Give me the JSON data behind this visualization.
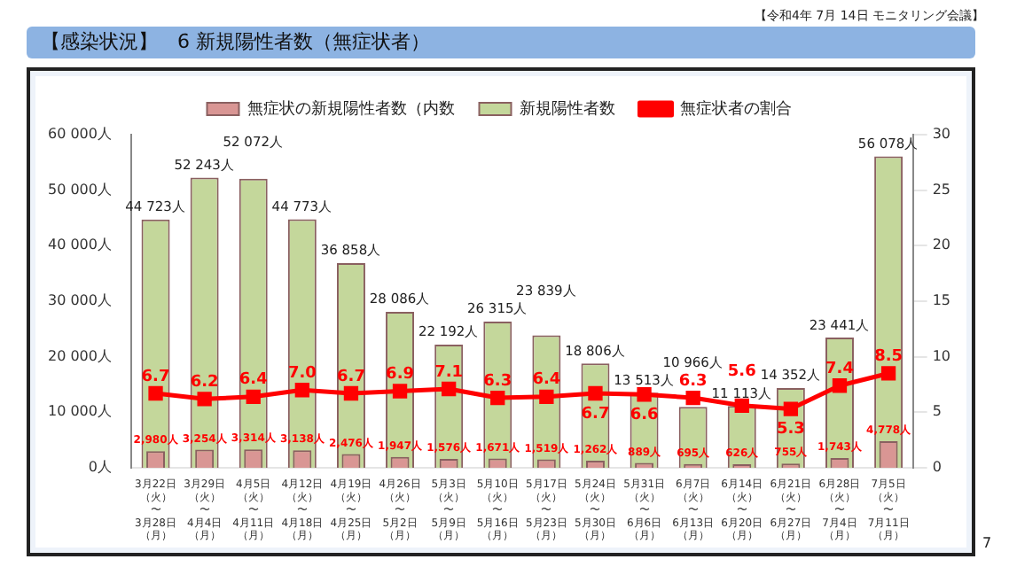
{
  "chart_data": {
    "type": "bar",
    "title": "【感染状況】　6 新規陽性者数（無症状者）",
    "annotations": [
      "【令和4年 7月 14日 モニタリング会議】",
      "7"
    ],
    "categories": [
      "3月22日（火）〜3月28日（月）",
      "3月29日（火）〜4月4日（月）",
      "4月5日（火）〜4月11日（月）",
      "4月12日（火）〜4月18日（月）",
      "4月19日（火）〜4月25日（月）",
      "4月26日（火）〜5月2日（月）",
      "5月3日（火）〜5月9日（月）",
      "5月10日（火）〜5月16日（月）",
      "5月17日（火）〜5月23日（月）",
      "5月24日（火）〜5月30日（月）",
      "5月31日（火）〜6月6日（月）",
      "6月7日（火）〜6月13日（月）",
      "6月14日（火）〜6月20日（月）",
      "6月21日（火）〜6月27日（月）",
      "6月28日（火）〜7月4日（月）",
      "7月5日（火）〜7月11日（月）"
    ],
    "series": [
      {
        "name": "無症状の新規陽性者数（内数",
        "color": "#d99694",
        "values": [
          2980,
          3254,
          3314,
          3138,
          2476,
          1947,
          1576,
          1671,
          1519,
          1262,
          889,
          695,
          626,
          755,
          1743,
          4778
        ],
        "value_labels": [
          "2,980人",
          "3,254人",
          "3,314人",
          "3,138人",
          "2,476人",
          "1,947人",
          "1,576人",
          "1,671人",
          "1,519人",
          "1,262人",
          "889人",
          "695人",
          "626人",
          "755人",
          "1,743人",
          "4,778人"
        ]
      },
      {
        "name": "新規陽性者数",
        "color": "#c4d79b",
        "values": [
          44723,
          52243,
          52072,
          44773,
          36858,
          28086,
          22192,
          26315,
          23839,
          18806,
          13513,
          10966,
          11113,
          14352,
          23441,
          56078
        ],
        "value_labels": [
          "44 723人",
          "52 243人",
          "52 072人",
          "44 773人",
          "36 858人",
          "28 086人",
          "22 192人",
          "26 315人",
          "23 839人",
          "18 806人",
          "13 513人",
          "10 966人",
          "11 113人",
          "14 352人",
          "23 441人",
          "56 078人"
        ]
      },
      {
        "name": "無症状者の割合",
        "type": "line",
        "axis": "y2",
        "color": "#ff0000",
        "marker": "square",
        "values": [
          6.7,
          6.2,
          6.4,
          7.0,
          6.7,
          6.9,
          7.1,
          6.3,
          6.4,
          6.7,
          6.6,
          6.3,
          5.6,
          5.3,
          7.4,
          8.5
        ],
        "value_labels": [
          "6.7",
          "6.2",
          "6.4",
          "7.0",
          "6.7",
          "6.9",
          "7.1",
          "6.3",
          "6.4",
          "6.7",
          "6.6",
          "6.3",
          "5.6",
          "5.3",
          "7.4",
          "8.5"
        ]
      }
    ],
    "ylim": [
      0,
      60000
    ],
    "yticks": [
      {
        "value": 0,
        "label": "0人"
      },
      {
        "value": 10000,
        "label": "10 000人"
      },
      {
        "value": 20000,
        "label": "20 000人"
      },
      {
        "value": 30000,
        "label": "30 000人"
      },
      {
        "value": 40000,
        "label": "40 000人"
      },
      {
        "value": 50000,
        "label": "50 000人"
      },
      {
        "value": 60000,
        "label": "60 000人"
      }
    ],
    "y2lim": [
      0,
      30
    ],
    "y2ticks": [
      0,
      5,
      10,
      15,
      20,
      25,
      30
    ],
    "grid": false,
    "legend": "top"
  }
}
